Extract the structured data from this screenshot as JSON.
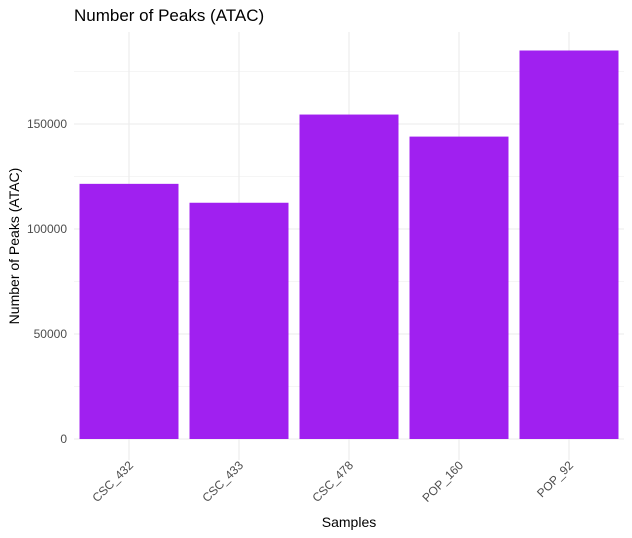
{
  "chart_data": {
    "type": "bar",
    "title": "Number of Peaks (ATAC)",
    "xlabel": "Samples",
    "ylabel": "Number of Peaks (ATAC)",
    "categories": [
      "CSC_432",
      "CSC_433",
      "CSC_478",
      "POP_160",
      "POP_92"
    ],
    "values": [
      121500,
      112500,
      154500,
      144000,
      185000
    ],
    "ylim": [
      0,
      190000
    ],
    "yticks": [
      0,
      50000,
      100000,
      150000
    ],
    "ytick_labels": [
      "0",
      "50000",
      "100000",
      "150000"
    ],
    "bar_color": "#A020F0",
    "grid": true,
    "legend": "none"
  }
}
